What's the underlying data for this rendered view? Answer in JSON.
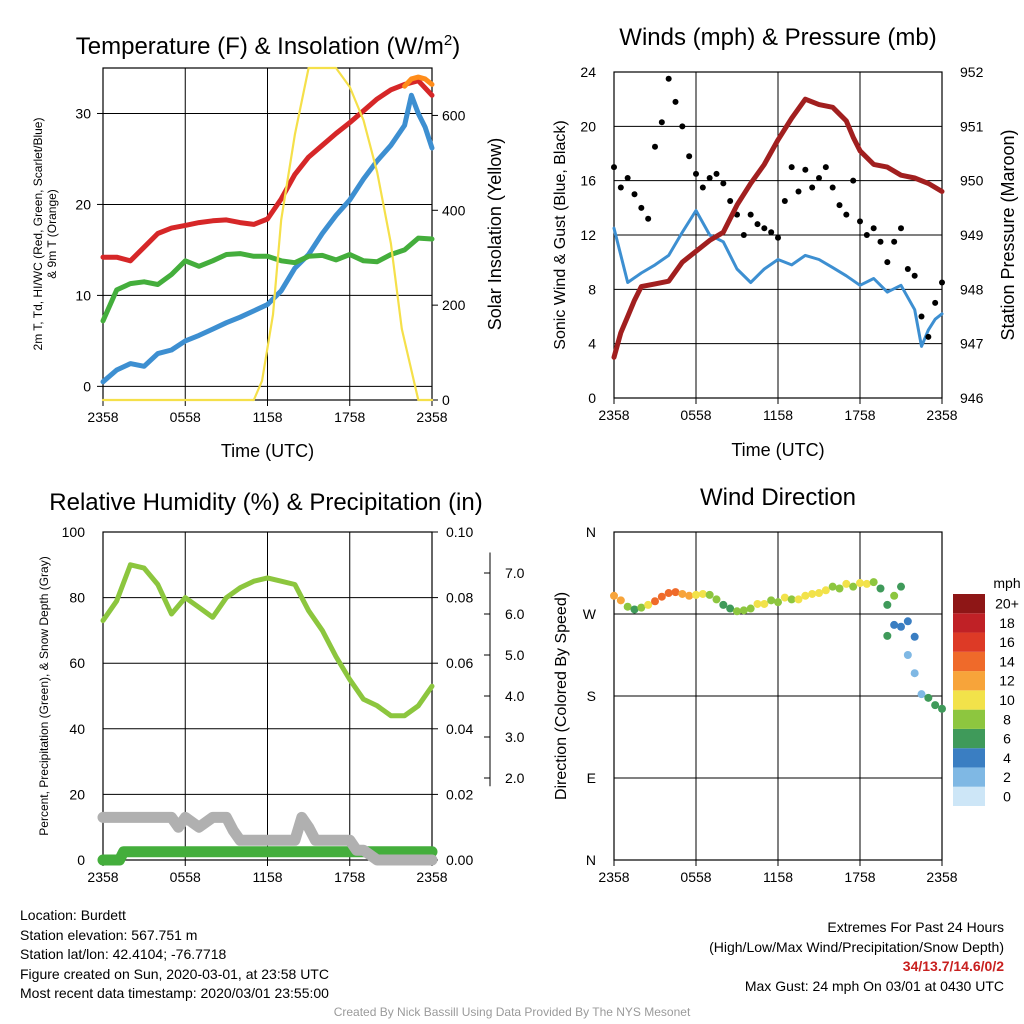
{
  "credit": "Created By Nick Bassill Using Data Provided By The NYS Mesonet",
  "station_info": {
    "location": "Location: Burdett",
    "elevation": "Station elevation: 567.751 m",
    "latlon": "Station lat/lon: 42.4104; -76.7718",
    "created": "Figure created on Sun, 2020-03-01, at 23:58 UTC",
    "recent": "Most recent data timestamp: 2020/03/01 23:55:00"
  },
  "extremes": {
    "title": "Extremes For Past 24 Hours",
    "subtitle": "(High/Low/Max Wind/Precipitation/Snow Depth)",
    "values": "34/13.7/14.6/0/2",
    "max_gust": "Max Gust: 24 mph On 03/01 at 0430 UTC"
  },
  "chart_data": [
    {
      "id": "temperature",
      "type": "line",
      "title": "Temperature (F) & Insolation (W/m²)",
      "xlabel": "Time (UTC)",
      "ylabel_left_lines": [
        "2m T, Td, HI/WC (Red, Green, Scarlet/Blue)",
        "& 9m T (Orange)"
      ],
      "ylabel_right": "Solar Insolation (Yellow)",
      "xlim": [
        0,
        24
      ],
      "xticks": [
        "2358",
        "0558",
        "1158",
        "1758",
        "2358"
      ],
      "ylim": [
        -1.5,
        35
      ],
      "yticks": [
        0,
        10,
        20,
        30
      ],
      "y2lim": [
        0,
        700
      ],
      "y2ticks": [
        0,
        200,
        400,
        600
      ],
      "grid": true,
      "series": [
        {
          "axis": "left",
          "color": "#d62728",
          "x": [
            0,
            1,
            2,
            3,
            4,
            5,
            6,
            7,
            8,
            9,
            10,
            11,
            12,
            13,
            14,
            15,
            16,
            17,
            18,
            19,
            20,
            21,
            22,
            23,
            24
          ],
          "y": [
            14.2,
            14.2,
            13.8,
            15.3,
            16.8,
            17.4,
            17.7,
            18,
            18.2,
            18.3,
            18,
            17.8,
            18.4,
            20.6,
            23.3,
            25.2,
            26.5,
            27.8,
            29,
            30.3,
            31.6,
            32.6,
            33.2,
            33.6,
            32
          ]
        },
        {
          "axis": "left",
          "color": "#ff8c1a",
          "x": [
            22,
            22.5,
            23,
            23.5,
            24
          ],
          "y": [
            33,
            33.8,
            34,
            33.8,
            33.2
          ]
        },
        {
          "axis": "left",
          "color": "#3d8fd1",
          "x": [
            0,
            1,
            2,
            3,
            4,
            5,
            6,
            7,
            8,
            9,
            10,
            11,
            12,
            13,
            14,
            15,
            16,
            17,
            18,
            19,
            20,
            21,
            22,
            22.5,
            23,
            23.5,
            24
          ],
          "y": [
            0.5,
            1.8,
            2.5,
            2.2,
            3.6,
            4,
            5,
            5.6,
            6.3,
            7,
            7.6,
            8.3,
            9,
            10.5,
            13,
            14.5,
            16.8,
            18.8,
            20.5,
            22.8,
            24.8,
            26.5,
            28.7,
            32,
            30,
            28.5,
            26.2
          ]
        },
        {
          "axis": "left",
          "color": "#44ae3c",
          "x": [
            0,
            1,
            2,
            3,
            4,
            5,
            6,
            7,
            8,
            9,
            10,
            11,
            12,
            13,
            14,
            15,
            16,
            17,
            18,
            19,
            20,
            21,
            22,
            23,
            24
          ],
          "y": [
            7.2,
            10.6,
            11.3,
            11.5,
            11.2,
            12.3,
            13.8,
            13.2,
            13.8,
            14.5,
            14.6,
            14.3,
            14.3,
            13.8,
            13.6,
            14.3,
            14.4,
            13.9,
            14.5,
            13.8,
            13.7,
            14.5,
            15,
            16.3,
            16.2
          ]
        },
        {
          "axis": "right",
          "color": "#f5e04a",
          "x": [
            0,
            11,
            11.6,
            12.4,
            13,
            14,
            15,
            16,
            17,
            18,
            19,
            20,
            21,
            21.8,
            22.6,
            23,
            24
          ],
          "y": [
            0,
            0,
            40,
            180,
            380,
            560,
            700,
            700,
            700,
            660,
            590,
            480,
            330,
            150,
            50,
            0,
            0
          ]
        }
      ]
    },
    {
      "id": "winds",
      "type": "line",
      "title": "Winds (mph) & Pressure (mb)",
      "xlabel": "Time (UTC)",
      "ylabel_left": "Sonic Wind & Gust (Blue, Black)",
      "ylabel_right": "Station Pressure (Maroon)",
      "xlim": [
        0,
        24
      ],
      "xticks": [
        "2358",
        "0558",
        "1158",
        "1758",
        "2358"
      ],
      "ylim": [
        0,
        24
      ],
      "yticks": [
        0,
        4,
        8,
        12,
        16,
        20,
        24
      ],
      "y2lim": [
        946,
        952
      ],
      "y2ticks": [
        946,
        947,
        948,
        949,
        950,
        951,
        952
      ],
      "grid": true,
      "series": [
        {
          "axis": "left",
          "kind": "line",
          "color": "#3d8fd1",
          "x": [
            0,
            1,
            2,
            3,
            4,
            5,
            6,
            7,
            8,
            9,
            10,
            11,
            12,
            13,
            14,
            15,
            16,
            17,
            18,
            19,
            20,
            21,
            22,
            22.5,
            23,
            23.5,
            24
          ],
          "y": [
            12.5,
            8.5,
            9.2,
            9.8,
            10.5,
            12.2,
            13.8,
            12,
            11.5,
            9.5,
            8.5,
            9.5,
            10.2,
            9.8,
            10.5,
            10.2,
            9.6,
            9,
            8.3,
            8.8,
            7.8,
            8.3,
            6.5,
            3.8,
            5,
            5.8,
            6.2
          ]
        },
        {
          "axis": "left",
          "kind": "scatter",
          "color": "#000000",
          "x": [
            0,
            0.5,
            1,
            1.5,
            2,
            2.5,
            3,
            3.5,
            4,
            4.5,
            5,
            5.5,
            6,
            6.5,
            7,
            7.5,
            8,
            8.5,
            9,
            9.5,
            10,
            10.5,
            11,
            11.5,
            12,
            12.5,
            13,
            13.5,
            14,
            14.5,
            15,
            15.5,
            16,
            16.5,
            17,
            17.5,
            18,
            18.5,
            19,
            19.5,
            20,
            20.5,
            21,
            21.5,
            22,
            22.5,
            23,
            23.5,
            24
          ],
          "y": [
            17,
            15.5,
            16.2,
            15,
            14,
            13.2,
            18.5,
            20.3,
            23.5,
            21.8,
            20,
            17.8,
            16.5,
            15.5,
            16.2,
            16.5,
            15.8,
            14.5,
            13.5,
            12,
            13.5,
            12.8,
            12.5,
            12.2,
            11.8,
            14.5,
            17,
            15.2,
            16.8,
            15.5,
            16.2,
            17,
            15.5,
            14.2,
            13.5,
            16,
            13,
            12,
            12.5,
            11.5,
            10,
            11.5,
            12.5,
            9.5,
            9,
            6,
            4.5,
            7,
            8.5
          ]
        },
        {
          "axis": "right",
          "kind": "line",
          "color": "#a11f1f",
          "x": [
            0,
            0.5,
            1,
            1.5,
            2,
            3,
            4,
            5,
            6,
            7,
            8,
            9,
            10,
            11,
            12,
            13,
            14,
            15,
            16,
            17,
            17.5,
            18,
            19,
            20,
            21,
            22,
            23,
            24
          ],
          "y": [
            946.75,
            947.2,
            947.5,
            947.8,
            948.05,
            948.1,
            948.15,
            948.5,
            948.7,
            948.9,
            949.05,
            949.55,
            949.95,
            950.3,
            950.75,
            951.15,
            951.5,
            951.4,
            951.35,
            951.1,
            950.8,
            950.55,
            950.3,
            950.25,
            950.1,
            950.05,
            949.95,
            949.8
          ]
        }
      ]
    },
    {
      "id": "humidity",
      "type": "line",
      "title": "Relative Humidity (%) & Precipitation (in)",
      "ylabel_left": "Percent, Precipitation (Green), & Snow Depth (Gray)",
      "xlim": [
        0,
        24
      ],
      "xticks": [
        "2358",
        "0558",
        "1158",
        "1758",
        "2358"
      ],
      "ylim": [
        0,
        100
      ],
      "yticks": [
        0,
        20,
        40,
        60,
        80,
        100
      ],
      "y2lim": [
        0,
        0.1
      ],
      "y2ticks": [
        "0.00",
        "0.02",
        "0.04",
        "0.06",
        "0.08",
        "0.10"
      ],
      "y3lim": [
        0,
        8
      ],
      "y3ticks": [
        "2.0",
        "3.0",
        "4.0",
        "5.0",
        "6.0",
        "7.0"
      ],
      "grid": true,
      "series": [
        {
          "axis": "left",
          "color": "#8cc63e",
          "x": [
            0,
            1,
            2,
            3,
            4,
            5,
            6,
            7,
            8,
            9,
            10,
            11,
            12,
            13,
            14,
            15,
            16,
            17,
            18,
            19,
            20,
            21,
            22,
            23,
            24
          ],
          "y": [
            73,
            79,
            90,
            89,
            84,
            75,
            80,
            77,
            74,
            80,
            83,
            85,
            86,
            85,
            84,
            76,
            70,
            62,
            55,
            49,
            47,
            44,
            44,
            47,
            53
          ]
        },
        {
          "axis": "right",
          "color": "#44ae3c",
          "x": [
            0,
            1.2,
            1.5,
            24
          ],
          "y": [
            0,
            0,
            0.0025,
            0.0025
          ]
        },
        {
          "axis": "left",
          "color": "#b0b0b0",
          "x": [
            0,
            4,
            5,
            5.5,
            6,
            7,
            8,
            9,
            9.5,
            10,
            11,
            12,
            13,
            14,
            14.5,
            15,
            15.5,
            16,
            17,
            18,
            18.5,
            19,
            20,
            21,
            22,
            23,
            24
          ],
          "y": [
            13,
            13,
            13,
            10,
            13,
            10,
            13,
            13,
            9,
            6,
            6,
            6,
            6,
            6,
            13,
            10,
            6,
            6,
            6,
            6,
            3,
            3,
            0,
            0,
            0,
            0,
            0
          ]
        }
      ]
    },
    {
      "id": "direction",
      "type": "scatter",
      "title": "Wind Direction",
      "ylabel_left": "Direction (Colored By Speed)",
      "xlim": [
        0,
        24
      ],
      "xticks": [
        "2358",
        "0558",
        "1158",
        "1758",
        "2358"
      ],
      "ylim": [
        0,
        360
      ],
      "ytick_values": [
        0,
        90,
        180,
        270,
        360
      ],
      "yticks": [
        "N",
        "E",
        "S",
        "W",
        "N"
      ],
      "grid": true,
      "colorbar": {
        "label": "mph",
        "labels": [
          "0",
          "2",
          "4",
          "6",
          "8",
          "10",
          "12",
          "14",
          "16",
          "18",
          "20+"
        ],
        "colors": [
          "#cde6f7",
          "#7fb8e4",
          "#3a7ec2",
          "#3f9a5a",
          "#8dc63f",
          "#f2e24a",
          "#f7a43a",
          "#ef6a2a",
          "#dd3a26",
          "#c02126",
          "#8e1616"
        ]
      },
      "points": {
        "x": [
          0,
          0.5,
          1,
          1.5,
          2,
          2.5,
          3,
          3.5,
          4,
          4.5,
          5,
          5.5,
          6,
          6.5,
          7,
          7.5,
          8,
          8.5,
          9,
          9.5,
          10,
          10.5,
          11,
          11.5,
          12,
          12.5,
          13,
          13.5,
          14,
          14.5,
          15,
          15.5,
          16,
          16.5,
          17,
          17.5,
          18,
          18.5,
          19,
          19.5,
          20,
          20,
          20.5,
          20.5,
          21,
          21,
          21.5,
          21.5,
          22,
          22,
          22.5,
          23,
          23.5,
          24
        ],
        "y": [
          290,
          285,
          278,
          275,
          277,
          280,
          284,
          289,
          293,
          294,
          292,
          290,
          291,
          292,
          291,
          286,
          280,
          276,
          273,
          274,
          276,
          281,
          281,
          285,
          283,
          288,
          286,
          286,
          290,
          292,
          293,
          296,
          300,
          298,
          303,
          300,
          304,
          303,
          305,
          298,
          280,
          246,
          290,
          258,
          300,
          256,
          262,
          225,
          245,
          205,
          182,
          178,
          170,
          166
        ],
        "speed": [
          12,
          11,
          8,
          6,
          7,
          9,
          13,
          14,
          13,
          13,
          12,
          11,
          10,
          9,
          8,
          7,
          6,
          6,
          7,
          8,
          8,
          9,
          10,
          8,
          8,
          9,
          8,
          9,
          9,
          10,
          10,
          9,
          8,
          7,
          9,
          8,
          9,
          10,
          8,
          6,
          6,
          5,
          7,
          4,
          5,
          3,
          4,
          2,
          4,
          2,
          2,
          5,
          6,
          6
        ]
      }
    }
  ]
}
